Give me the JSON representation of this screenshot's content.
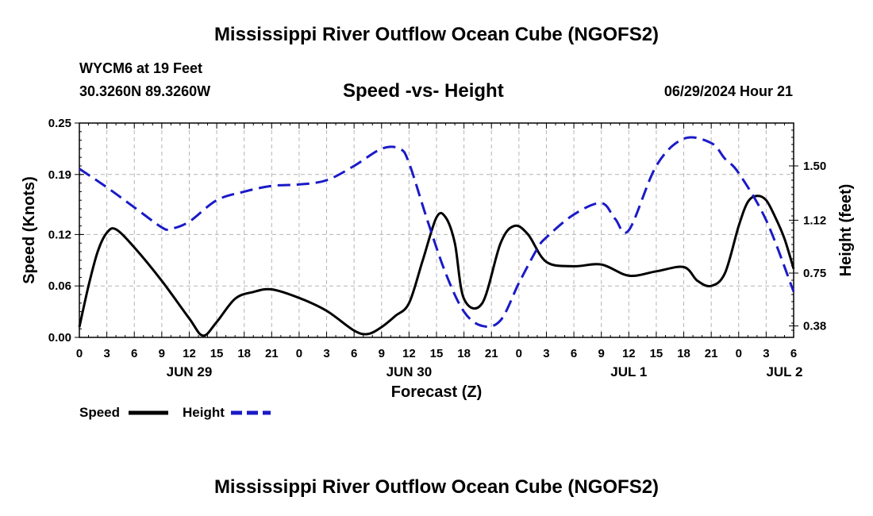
{
  "header": {
    "title": "Mississippi River Outflow Ocean Cube (NGOFS2)",
    "station": "WYCM6 at 19 Feet",
    "coordinates": "30.3260N  89.3260W",
    "subtitle": "Speed -vs- Height",
    "datetime": "06/29/2024 Hour 21",
    "footer_title": "Mississippi River Outflow Ocean Cube (NGOFS2)"
  },
  "colors": {
    "speed": "#000000",
    "height": "#1a1ac8",
    "grid": "#b4b4b4"
  },
  "chart_data": {
    "type": "line",
    "title": "Speed -vs- Height",
    "xlabel": "Forecast (Z)",
    "ylabel": "Speed (Knots)",
    "y2label": "Height (feet)",
    "xlim": [
      0,
      78
    ],
    "ylim": [
      0,
      0.25
    ],
    "y2lim": [
      0.3,
      1.8
    ],
    "x_tick_labels": [
      "0",
      "3",
      "6",
      "9",
      "12",
      "15",
      "18",
      "21",
      "0",
      "3",
      "6",
      "9",
      "12",
      "15",
      "18",
      "21",
      "0",
      "3",
      "6",
      "9",
      "12",
      "15",
      "18",
      "21",
      "0",
      "3",
      "6"
    ],
    "date_labels": [
      {
        "x": 12,
        "label": "JUN 29"
      },
      {
        "x": 36,
        "label": "JUN 30"
      },
      {
        "x": 60,
        "label": "JUL 1"
      },
      {
        "x": 77,
        "label": "JUL 2"
      }
    ],
    "y_ticks": [
      0,
      0.06,
      0.12,
      0.19,
      0.25
    ],
    "y_tick_labels": [
      "0.00",
      "0.06",
      "0.12",
      "0.19",
      "0.25"
    ],
    "y2_ticks": [
      0.38,
      0.75,
      1.12,
      1.5
    ],
    "y2_tick_labels": [
      "0.38",
      "0.75",
      "1.12",
      "1.50"
    ],
    "series": [
      {
        "name": "Speed",
        "axis": "left",
        "style": "solid",
        "x": [
          0,
          1,
          2,
          3,
          4,
          6,
          9,
          12,
          13.5,
          15,
          17,
          19,
          21,
          24,
          27,
          30,
          31.5,
          33,
          34.5,
          36,
          37.5,
          39,
          40,
          41,
          42,
          44,
          46,
          47.5,
          49,
          51,
          54,
          57,
          60,
          63,
          66,
          67.5,
          69,
          70.5,
          72,
          73,
          74,
          75,
          76,
          77,
          78
        ],
        "values": [
          0.012,
          0.06,
          0.1,
          0.122,
          0.126,
          0.105,
          0.066,
          0.022,
          0.002,
          0.018,
          0.045,
          0.053,
          0.056,
          0.046,
          0.031,
          0.008,
          0.004,
          0.012,
          0.025,
          0.04,
          0.09,
          0.14,
          0.14,
          0.11,
          0.045,
          0.04,
          0.11,
          0.13,
          0.12,
          0.088,
          0.083,
          0.085,
          0.072,
          0.077,
          0.082,
          0.066,
          0.06,
          0.075,
          0.13,
          0.158,
          0.165,
          0.16,
          0.14,
          0.115,
          0.08
        ]
      },
      {
        "name": "Height",
        "axis": "right",
        "style": "dashed",
        "x": [
          0,
          3,
          6,
          9,
          10,
          12,
          15,
          18,
          21,
          24,
          27,
          30,
          33,
          35,
          36,
          38,
          40,
          42,
          44,
          46,
          48,
          50,
          51,
          54,
          57,
          58.5,
          60,
          63,
          66,
          69,
          70.5,
          72,
          75,
          78
        ],
        "values": [
          1.48,
          1.35,
          1.21,
          1.07,
          1.06,
          1.11,
          1.26,
          1.32,
          1.36,
          1.37,
          1.4,
          1.5,
          1.62,
          1.62,
          1.52,
          1.12,
          0.75,
          0.48,
          0.38,
          0.42,
          0.68,
          0.92,
          1.0,
          1.16,
          1.24,
          1.13,
          1.05,
          1.5,
          1.69,
          1.66,
          1.55,
          1.45,
          1.12,
          0.62
        ]
      }
    ],
    "legend": [
      {
        "label": "Speed",
        "style": "solid"
      },
      {
        "label": "Height",
        "style": "dashed"
      }
    ],
    "legend_position": "bottom-left"
  }
}
